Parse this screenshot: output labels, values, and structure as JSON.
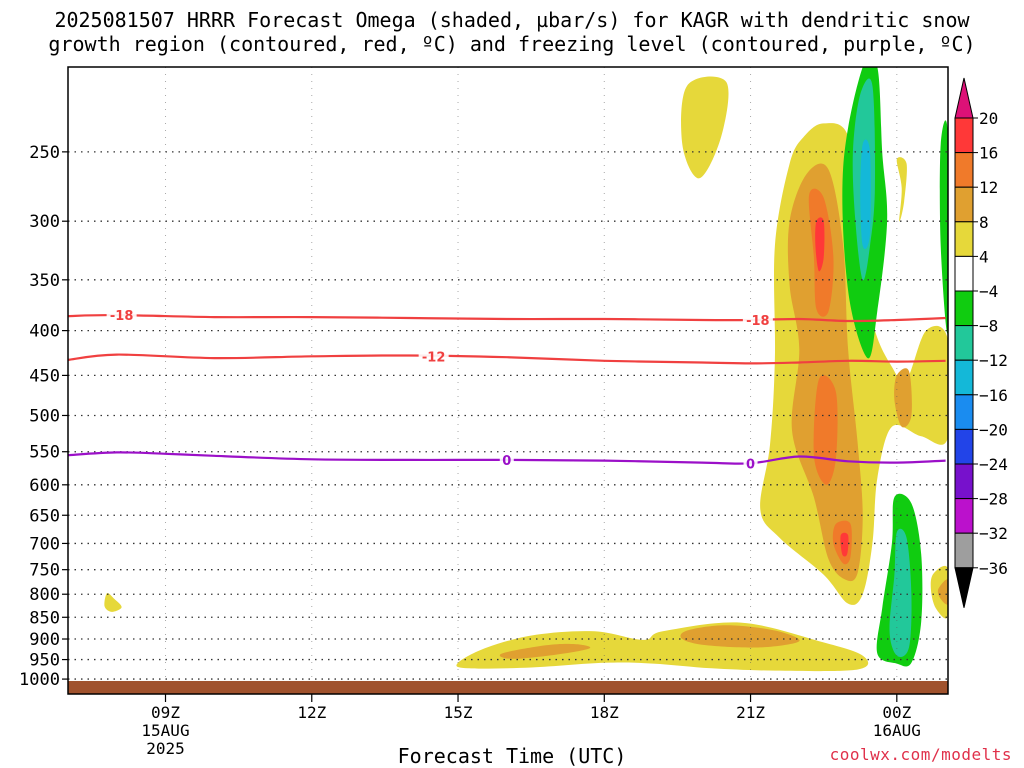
{
  "title": {
    "line1": "2025081507 HRRR Forecast Omega (shaded, µbar/s) for KAGR with dendritic snow",
    "line2": "growth region (contoured, red, ºC) and freezing level (contoured, purple, ºC)"
  },
  "credit": "coolwx.com/modelts",
  "chart_data": {
    "type": "heatmap",
    "title": "2025081507 HRRR Forecast Omega (shaded, µbar/s) for KAGR with dendritic snow growth region (contoured, red, ºC) and freezing level (contoured, purple, ºC)",
    "xlabel": "Forecast Time (UTC)",
    "ylabel": "",
    "x_axis": {
      "unit": "hours since 2025-08-15 00Z",
      "range": [
        7,
        25.05
      ],
      "ticks": [
        {
          "x": 9,
          "label": "09Z",
          "sub1": "15AUG",
          "sub2": "2025"
        },
        {
          "x": 12,
          "label": "12Z",
          "sub1": "",
          "sub2": ""
        },
        {
          "x": 15,
          "label": "15Z",
          "sub1": "",
          "sub2": ""
        },
        {
          "x": 18,
          "label": "18Z",
          "sub1": "",
          "sub2": ""
        },
        {
          "x": 21,
          "label": "21Z",
          "sub1": "",
          "sub2": ""
        },
        {
          "x": 24,
          "label": "00Z",
          "sub1": "16AUG",
          "sub2": ""
        }
      ]
    },
    "y_axis": {
      "unit": "hPa",
      "scale": "log, inverted",
      "range": [
        1040,
        200
      ],
      "ticks": [
        250,
        300,
        350,
        400,
        450,
        500,
        550,
        600,
        650,
        700,
        750,
        800,
        850,
        900,
        950,
        1000
      ],
      "grid": "dotted horizontal"
    },
    "ground_color": "#a0522d",
    "colorbar": {
      "levels": [
        20,
        16,
        12,
        8,
        4,
        -4,
        -8,
        -12,
        -16,
        -20,
        -24,
        -28,
        -32,
        -36
      ],
      "colors": [
        "#dd1177",
        "#ff3838",
        "#f07a2a",
        "#e0a030",
        "#e6d83a",
        "#ffffff",
        "#10cc10",
        "#22c89a",
        "#14b8d8",
        "#1a8cf0",
        "#2244e8",
        "#7711cc",
        "#bb11cc",
        "#9e9e9e",
        "#000000"
      ]
    },
    "contours": [
      {
        "label": "-18",
        "color": "#f04040",
        "kind": "dendritic",
        "points": [
          [
            7,
            385
          ],
          [
            8,
            384
          ],
          [
            10,
            386
          ],
          [
            12,
            386
          ],
          [
            14,
            387
          ],
          [
            16,
            388
          ],
          [
            18,
            388
          ],
          [
            20,
            389
          ],
          [
            21,
            389
          ],
          [
            22,
            388
          ],
          [
            23,
            390
          ],
          [
            24,
            389
          ],
          [
            25,
            387
          ]
        ]
      },
      {
        "label": "-12",
        "color": "#f04040",
        "kind": "dendritic",
        "points": [
          [
            7,
            432
          ],
          [
            8,
            426
          ],
          [
            10,
            430
          ],
          [
            12,
            428
          ],
          [
            14,
            427
          ],
          [
            16,
            429
          ],
          [
            18,
            433
          ],
          [
            20,
            435
          ],
          [
            21,
            436
          ],
          [
            22,
            435
          ],
          [
            23,
            433
          ],
          [
            24,
            434
          ],
          [
            25,
            433
          ]
        ]
      },
      {
        "label": "0",
        "color": "#9b10c8",
        "kind": "freezing",
        "points": [
          [
            7,
            555
          ],
          [
            8,
            551
          ],
          [
            9,
            553
          ],
          [
            10,
            556
          ],
          [
            12,
            561
          ],
          [
            14,
            562
          ],
          [
            16,
            562
          ],
          [
            18,
            563
          ],
          [
            20,
            566
          ],
          [
            21,
            567
          ],
          [
            22,
            557
          ],
          [
            23,
            564
          ],
          [
            24,
            566
          ],
          [
            25,
            563
          ]
        ]
      }
    ],
    "contour_labels": [
      {
        "text": "-18",
        "x": 8.1,
        "p": 384
      },
      {
        "text": "-18",
        "x": 21.15,
        "p": 389
      },
      {
        "text": "-12",
        "x": 14.5,
        "p": 428
      },
      {
        "text": "0",
        "x": 16.0,
        "p": 562
      },
      {
        "text": "0",
        "x": 21.0,
        "p": 567
      }
    ],
    "regions": [
      {
        "level": 4,
        "points": [
          [
            7.8,
            798
          ],
          [
            7.95,
            810
          ],
          [
            8.1,
            828
          ],
          [
            7.9,
            838
          ],
          [
            7.75,
            826
          ]
        ]
      },
      {
        "level": 4,
        "points": [
          [
            19.7,
            210
          ],
          [
            20.5,
            208
          ],
          [
            20.4,
            240
          ],
          [
            19.95,
            268
          ],
          [
            19.6,
            245
          ]
        ]
      },
      {
        "level": 4,
        "points": [
          [
            15.0,
            958
          ],
          [
            15.6,
            920
          ],
          [
            16.6,
            890
          ],
          [
            17.8,
            882
          ],
          [
            18.8,
            902
          ],
          [
            19.2,
            882
          ],
          [
            20.8,
            862
          ],
          [
            22.4,
            905
          ],
          [
            23.3,
            940
          ],
          [
            23.2,
            975
          ],
          [
            21.5,
            978
          ],
          [
            20.2,
            972
          ],
          [
            19.0,
            960
          ],
          [
            18.0,
            958
          ],
          [
            16.5,
            970
          ],
          [
            15.2,
            972
          ]
        ]
      },
      {
        "level": 8,
        "points": [
          [
            15.9,
            935
          ],
          [
            16.8,
            915
          ],
          [
            17.4,
            912
          ],
          [
            17.7,
            922
          ],
          [
            17.0,
            938
          ],
          [
            16.1,
            948
          ]
        ]
      },
      {
        "level": 8,
        "points": [
          [
            19.7,
            880
          ],
          [
            20.5,
            868
          ],
          [
            21.5,
            880
          ],
          [
            22.0,
            905
          ],
          [
            21.2,
            920
          ],
          [
            20.1,
            915
          ],
          [
            19.6,
            900
          ]
        ]
      },
      {
        "level": 4,
        "points": [
          [
            21.5,
            320
          ],
          [
            21.8,
            258
          ],
          [
            22.1,
            240
          ],
          [
            22.5,
            232
          ],
          [
            23.0,
            240
          ],
          [
            23.2,
            300
          ],
          [
            23.5,
            390
          ],
          [
            23.9,
            440
          ],
          [
            24.2,
            455
          ],
          [
            24.6,
            400
          ],
          [
            25.05,
            410
          ],
          [
            25.05,
            530
          ],
          [
            24.5,
            528
          ],
          [
            23.9,
            515
          ],
          [
            23.6,
            590
          ],
          [
            23.5,
            700
          ],
          [
            23.3,
            800
          ],
          [
            23.0,
            820
          ],
          [
            22.5,
            760
          ],
          [
            21.6,
            690
          ],
          [
            21.2,
            640
          ],
          [
            21.4,
            540
          ],
          [
            21.5,
            430
          ]
        ]
      },
      {
        "level": 8,
        "points": [
          [
            21.8,
            300
          ],
          [
            22.15,
            265
          ],
          [
            22.6,
            262
          ],
          [
            22.9,
            320
          ],
          [
            23.0,
            420
          ],
          [
            23.2,
            540
          ],
          [
            23.3,
            650
          ],
          [
            23.2,
            755
          ],
          [
            22.95,
            770
          ],
          [
            22.6,
            730
          ],
          [
            22.3,
            620
          ],
          [
            21.85,
            520
          ],
          [
            22.0,
            420
          ],
          [
            21.8,
            355
          ]
        ]
      },
      {
        "level": 12,
        "points": [
          [
            22.2,
            280
          ],
          [
            22.5,
            282
          ],
          [
            22.7,
            330
          ],
          [
            22.6,
            380
          ],
          [
            22.35,
            378
          ],
          [
            22.3,
            330
          ]
        ]
      },
      {
        "level": 12,
        "points": [
          [
            22.4,
            455
          ],
          [
            22.75,
            470
          ],
          [
            22.75,
            560
          ],
          [
            22.55,
            600
          ],
          [
            22.3,
            555
          ]
        ]
      },
      {
        "level": 12,
        "points": [
          [
            22.75,
            665
          ],
          [
            23.05,
            665
          ],
          [
            23.05,
            725
          ],
          [
            22.9,
            738
          ],
          [
            22.7,
            700
          ]
        ]
      },
      {
        "level": 16,
        "points": [
          [
            22.35,
            300
          ],
          [
            22.5,
            300
          ],
          [
            22.5,
            330
          ],
          [
            22.4,
            342
          ],
          [
            22.33,
            320
          ]
        ]
      },
      {
        "level": 16,
        "points": [
          [
            22.85,
            685
          ],
          [
            23.0,
            685
          ],
          [
            22.98,
            720
          ],
          [
            22.88,
            720
          ]
        ]
      },
      {
        "level": 8,
        "points": [
          [
            24.0,
            450
          ],
          [
            24.25,
            445
          ],
          [
            24.3,
            500
          ],
          [
            24.1,
            515
          ],
          [
            23.95,
            480
          ]
        ]
      },
      {
        "level": 4,
        "points": [
          [
            24.0,
            255
          ],
          [
            24.2,
            258
          ],
          [
            24.15,
            285
          ],
          [
            24.05,
            300
          ],
          [
            24.1,
            275
          ]
        ]
      },
      {
        "level": 4,
        "points": [
          [
            24.75,
            758
          ],
          [
            25.05,
            748
          ],
          [
            25.05,
            848
          ],
          [
            24.8,
            830
          ],
          [
            24.7,
            790
          ]
        ]
      },
      {
        "level": 8,
        "points": [
          [
            24.85,
            790
          ],
          [
            25.05,
            770
          ],
          [
            25.05,
            820
          ],
          [
            24.9,
            810
          ]
        ]
      },
      {
        "level": -4,
        "points": [
          [
            23.3,
            200
          ],
          [
            23.6,
            200
          ],
          [
            23.7,
            250
          ],
          [
            23.8,
            300
          ],
          [
            23.6,
            380
          ],
          [
            23.4,
            430
          ],
          [
            23.0,
            360
          ],
          [
            22.9,
            260
          ]
        ]
      },
      {
        "level": -8,
        "points": [
          [
            23.25,
            215
          ],
          [
            23.5,
            210
          ],
          [
            23.55,
            275
          ],
          [
            23.45,
            320
          ],
          [
            23.3,
            350
          ],
          [
            23.15,
            300
          ],
          [
            23.1,
            250
          ]
        ]
      },
      {
        "level": -12,
        "points": [
          [
            23.3,
            245
          ],
          [
            23.45,
            250
          ],
          [
            23.45,
            310
          ],
          [
            23.3,
            320
          ],
          [
            23.25,
            280
          ]
        ]
      },
      {
        "level": -4,
        "points": [
          [
            24.9,
            245
          ],
          [
            25.05,
            240
          ],
          [
            25.05,
            400
          ],
          [
            24.9,
            320
          ]
        ]
      },
      {
        "level": -4,
        "points": [
          [
            23.95,
            620
          ],
          [
            24.3,
            630
          ],
          [
            24.5,
            720
          ],
          [
            24.5,
            860
          ],
          [
            24.3,
            958
          ],
          [
            24.0,
            960
          ],
          [
            23.6,
            935
          ],
          [
            23.7,
            830
          ],
          [
            23.9,
            700
          ]
        ]
      },
      {
        "level": -8,
        "points": [
          [
            24.0,
            680
          ],
          [
            24.2,
            690
          ],
          [
            24.3,
            800
          ],
          [
            24.25,
            920
          ],
          [
            24.0,
            940
          ],
          [
            23.85,
            880
          ],
          [
            23.95,
            760
          ]
        ]
      }
    ]
  }
}
